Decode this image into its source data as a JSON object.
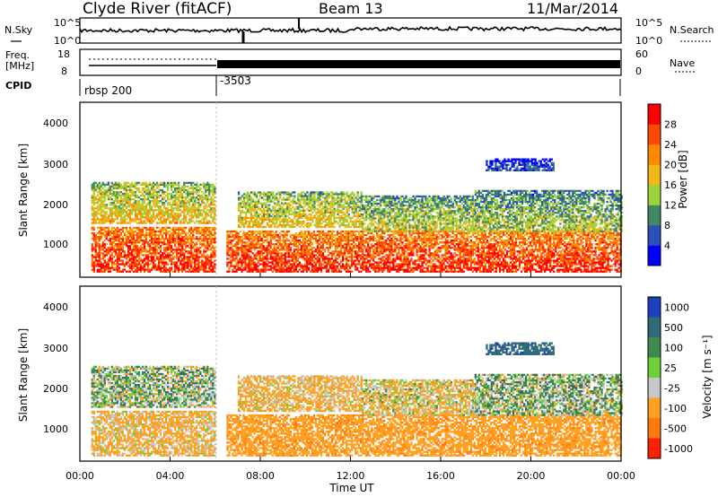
{
  "header": {
    "station": "Clyde River (fitACF)",
    "beam": "Beam 13",
    "date": "11/Mar/2014"
  },
  "noise_panel": {
    "left_label": "N.Sky",
    "left_ticks": [
      "10^5",
      "10^0"
    ],
    "right_label": "N.Search",
    "right_ticks": [
      "10^5",
      "10^0"
    ]
  },
  "freq_panel": {
    "left_label": "Freq.",
    "left_unit": "[MHz]",
    "left_ticks": [
      "18",
      "8"
    ],
    "right_label": "Nave",
    "right_ticks": [
      "60",
      "0"
    ]
  },
  "cpid_panel": {
    "label": "CPID",
    "segments": [
      {
        "text": "rbsp 200",
        "start_hour": 0
      },
      {
        "text": "-3503",
        "start_hour": 6
      }
    ]
  },
  "power_panel": {
    "ylabel": "Slant Range [km]",
    "yticks": [
      "1000",
      "2000",
      "3000",
      "4000"
    ],
    "colorbar_label": "Power [dB]",
    "colorbar_ticks": [
      "4",
      "8",
      "12",
      "16",
      "20",
      "24",
      "28"
    ],
    "colors": [
      "#0000ff",
      "#2b52b8",
      "#3f8a62",
      "#9dd33a",
      "#f2b81a",
      "#ff8a00",
      "#ff4a00",
      "#ff0000"
    ]
  },
  "velocity_panel": {
    "ylabel": "Slant Range [km]",
    "yticks": [
      "1000",
      "2000",
      "3000",
      "4000"
    ],
    "colorbar_label": "Velocity [m s⁻¹]",
    "colorbar_ticks": [
      "1000",
      "500",
      "100",
      "25",
      "-25",
      "-100",
      "-500",
      "-1000"
    ],
    "colors": [
      "#1a3fbf",
      "#2f6a78",
      "#3d8a4a",
      "#6ecf3a",
      "#c8c8c8",
      "#ffa020",
      "#ff7a10",
      "#ff2000"
    ]
  },
  "xaxis": {
    "label": "Time UT",
    "ticks": [
      "00:00",
      "04:00",
      "08:00",
      "12:00",
      "16:00",
      "20:00",
      "00:00"
    ]
  },
  "chart_data": {
    "type": "heatmap",
    "x_range_hours": [
      0,
      24
    ],
    "y_range_km": [
      180,
      4500
    ],
    "power_range_db": [
      0,
      30
    ],
    "velocity_range": [
      -1000,
      1000
    ],
    "scatter_bands": [
      {
        "t0": 0.5,
        "t1": 6,
        "r0": 300,
        "r1": 1400,
        "power": 27,
        "velocity": -150
      },
      {
        "t0": 6.5,
        "t1": 24,
        "r0": 300,
        "r1": 1300,
        "power": 27,
        "velocity": -400
      },
      {
        "t0": 0.5,
        "t1": 6,
        "r0": 1500,
        "r1": 2500,
        "power": 18,
        "velocity": 0
      },
      {
        "t0": 7,
        "t1": 12.5,
        "r0": 1400,
        "r1": 2300,
        "power": 17,
        "velocity": -150
      },
      {
        "t0": 12.5,
        "t1": 17.5,
        "r0": 1300,
        "r1": 2200,
        "power": 15,
        "velocity": -100
      },
      {
        "t0": 17.5,
        "t1": 24,
        "r0": 1300,
        "r1": 2300,
        "power": 14,
        "velocity": 0
      },
      {
        "t0": 18,
        "t1": 21,
        "r0": 2800,
        "r1": 3100,
        "power": 7,
        "velocity": 400
      }
    ]
  }
}
